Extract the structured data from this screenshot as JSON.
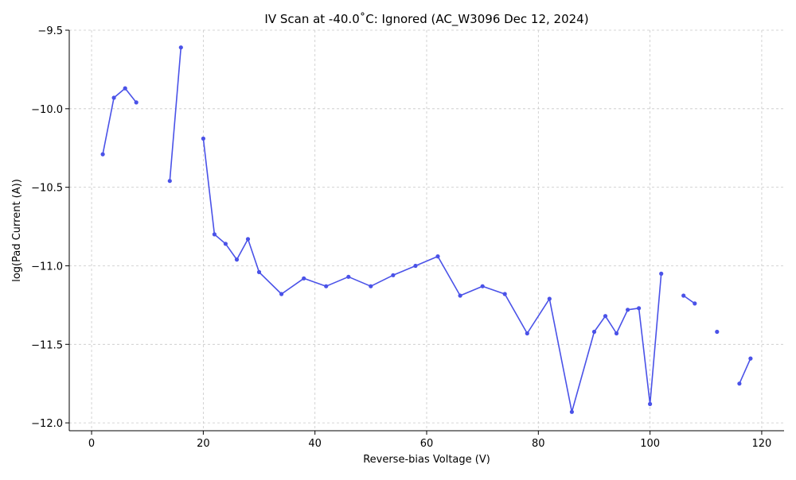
{
  "chart_data": {
    "type": "line",
    "title": "IV Scan at -40.0$^\\circ$C: Ignored (AC_W3096 Dec 12, 2024)",
    "title_display": "IV Scan at -40.0˚C: Ignored (AC_W3096 Dec 12, 2024)",
    "xlabel": "Reverse-bias Voltage (V)",
    "ylabel": "log(Pad Current (A))",
    "xlim": [
      -4,
      124
    ],
    "ylim": [
      -12.05,
      -9.5
    ],
    "xticks": [
      0,
      20,
      40,
      60,
      80,
      100,
      120
    ],
    "xtick_labels": [
      "0",
      "20",
      "40",
      "60",
      "80",
      "100",
      "120"
    ],
    "yticks": [
      -12.0,
      -11.5,
      -11.0,
      -10.5,
      -10.0,
      -9.5
    ],
    "ytick_labels": [
      "−12.0",
      "−11.5",
      "−11.0",
      "−10.5",
      "−10.0",
      "−9.5"
    ],
    "grid": true,
    "grid_style": "dashed",
    "series_color": "#4a52e8",
    "series": [
      {
        "points": [
          [
            2,
            -10.29
          ],
          [
            4,
            -9.93
          ],
          [
            6,
            -9.87
          ],
          [
            8,
            -9.96
          ],
          [
            10,
            null
          ],
          [
            12,
            null
          ],
          [
            14,
            -10.46
          ],
          [
            16,
            -9.61
          ],
          [
            18,
            null
          ],
          [
            20,
            -10.19
          ],
          [
            22,
            -10.8
          ],
          [
            24,
            -10.86
          ],
          [
            26,
            -10.96
          ],
          [
            28,
            -10.83
          ],
          [
            30,
            -11.04
          ],
          [
            34,
            -11.18
          ],
          [
            38,
            -11.08
          ],
          [
            42,
            -11.13
          ],
          [
            46,
            -11.07
          ],
          [
            50,
            -11.13
          ],
          [
            54,
            -11.06
          ],
          [
            58,
            -11.0
          ],
          [
            62,
            -10.94
          ],
          [
            66,
            -11.19
          ],
          [
            70,
            -11.13
          ],
          [
            74,
            -11.18
          ],
          [
            78,
            -11.43
          ],
          [
            82,
            -11.21
          ],
          [
            86,
            -11.93
          ],
          [
            90,
            -11.42
          ],
          [
            92,
            -11.32
          ],
          [
            94,
            -11.43
          ],
          [
            96,
            -11.28
          ],
          [
            98,
            -11.27
          ],
          [
            100,
            -11.88
          ],
          [
            102,
            -11.05
          ],
          [
            104,
            null
          ],
          [
            106,
            -11.19
          ],
          [
            108,
            -11.24
          ],
          [
            110,
            null
          ],
          [
            112,
            -11.42
          ],
          [
            114,
            null
          ],
          [
            116,
            -11.75
          ],
          [
            118,
            -11.59
          ]
        ]
      }
    ]
  }
}
